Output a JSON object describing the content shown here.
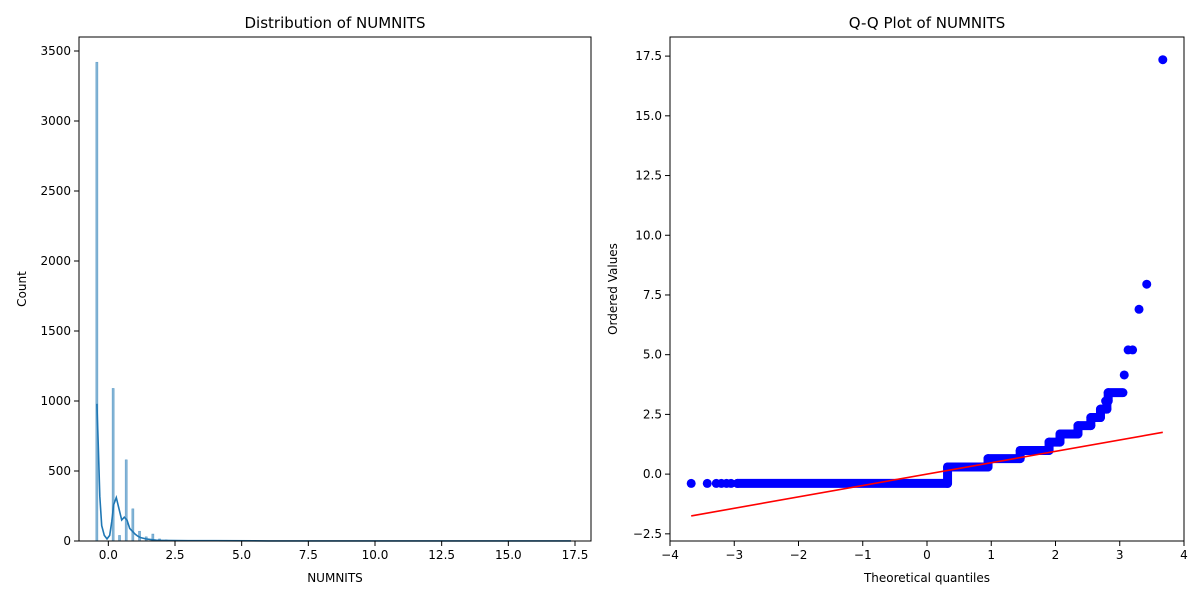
{
  "chart_data": [
    {
      "type": "bar",
      "title": "Distribution of NUMNITS",
      "xlabel": "NUMNITS",
      "ylabel": "Count",
      "xlim": [
        -1.1,
        18.1
      ],
      "ylim": [
        0,
        3600
      ],
      "xticks": [
        0,
        2.5,
        5,
        7.5,
        10,
        12.5,
        15,
        17.5
      ],
      "xtick_labels": [
        "0.0",
        "2.5",
        "5.0",
        "7.5",
        "10.0",
        "12.5",
        "15.0",
        "17.5"
      ],
      "yticks": [
        0,
        500,
        1000,
        1500,
        2000,
        2500,
        3000,
        3500
      ],
      "ytick_labels": [
        "0",
        "500",
        "1000",
        "1500",
        "2000",
        "2500",
        "3000",
        "3500"
      ],
      "grid": false,
      "color": "#1f77b4",
      "histogram": {
        "bin_centers": [
          -0.43,
          0.18,
          0.42,
          0.67,
          0.92,
          1.17,
          1.42,
          1.67,
          1.92,
          2.17,
          2.42,
          2.67,
          3.42
        ],
        "counts": [
          3420,
          1090,
          40,
          580,
          230,
          70,
          30,
          50,
          15,
          8,
          5,
          3,
          2
        ]
      },
      "kde": {
        "x": [
          -0.43,
          -0.38,
          -0.32,
          -0.25,
          -0.15,
          -0.05,
          0.05,
          0.13,
          0.2,
          0.3,
          0.4,
          0.5,
          0.6,
          0.7,
          0.8,
          0.9,
          1.0,
          1.1,
          1.2,
          1.4,
          1.6,
          1.8,
          2.0,
          2.5,
          3.0,
          4.0,
          6.0,
          10.0,
          14.0,
          17.35
        ],
        "y": [
          980,
          700,
          320,
          110,
          40,
          15,
          40,
          140,
          260,
          310,
          230,
          150,
          170,
          150,
          90,
          70,
          50,
          35,
          25,
          15,
          10,
          6,
          4,
          3,
          2,
          2,
          1,
          1,
          1,
          1
        ]
      }
    },
    {
      "type": "scatter",
      "title": "Q-Q Plot of NUMNITS",
      "xlabel": "Theoretical quantiles",
      "ylabel": "Ordered Values",
      "xlim": [
        -4.0,
        4.0
      ],
      "ylim": [
        -2.8,
        18.3
      ],
      "xticks": [
        -4,
        -3,
        -2,
        -1,
        0,
        1,
        2,
        3,
        4
      ],
      "xtick_labels": [
        "−4",
        "−3",
        "−2",
        "−1",
        "0",
        "1",
        "2",
        "3",
        "4"
      ],
      "yticks": [
        -2.5,
        0,
        2.5,
        5,
        7.5,
        10,
        12.5,
        15,
        17.5
      ],
      "ytick_labels": [
        "−2.5",
        "0.0",
        "2.5",
        "5.0",
        "7.5",
        "10.0",
        "12.5",
        "15.0",
        "17.5"
      ],
      "grid": false,
      "marker_color": "#0000ff",
      "line_color": "#ff0000",
      "points": [
        {
          "x": -3.67,
          "y": -0.39
        },
        {
          "x": -3.42,
          "y": -0.39
        },
        {
          "x": -3.28,
          "y": -0.39
        },
        {
          "x": -3.2,
          "y": -0.39
        },
        {
          "x": -3.12,
          "y": -0.39
        },
        {
          "x": -3.05,
          "y": -0.39
        },
        {
          "x": -2.95,
          "y": -0.39
        },
        {
          "x": 3.07,
          "y": 4.15
        },
        {
          "x": 3.13,
          "y": 5.2
        },
        {
          "x": 3.2,
          "y": 5.2
        },
        {
          "x": 3.3,
          "y": 6.9
        },
        {
          "x": 3.42,
          "y": 7.95
        },
        {
          "x": 3.67,
          "y": 17.35
        }
      ],
      "steps": [
        {
          "x_start": -2.95,
          "x_end": 0.32,
          "y": -0.39
        },
        {
          "x_start": 0.32,
          "x_end": 0.95,
          "y": 0.3
        },
        {
          "x_start": 0.95,
          "x_end": 1.45,
          "y": 0.65
        },
        {
          "x_start": 1.45,
          "x_end": 1.9,
          "y": 0.99
        },
        {
          "x_start": 1.9,
          "x_end": 2.07,
          "y": 1.34
        },
        {
          "x_start": 2.07,
          "x_end": 2.35,
          "y": 1.68
        },
        {
          "x_start": 2.35,
          "x_end": 2.55,
          "y": 2.03
        },
        {
          "x_start": 2.55,
          "x_end": 2.7,
          "y": 2.37
        },
        {
          "x_start": 2.7,
          "x_end": 2.8,
          "y": 2.72
        },
        {
          "x_start": 2.78,
          "x_end": 2.82,
          "y": 3.06
        },
        {
          "x_start": 2.82,
          "x_end": 3.05,
          "y": 3.41
        }
      ],
      "fit_line": {
        "x": [
          -3.67,
          3.67
        ],
        "y": [
          -1.75,
          1.75
        ]
      }
    }
  ]
}
